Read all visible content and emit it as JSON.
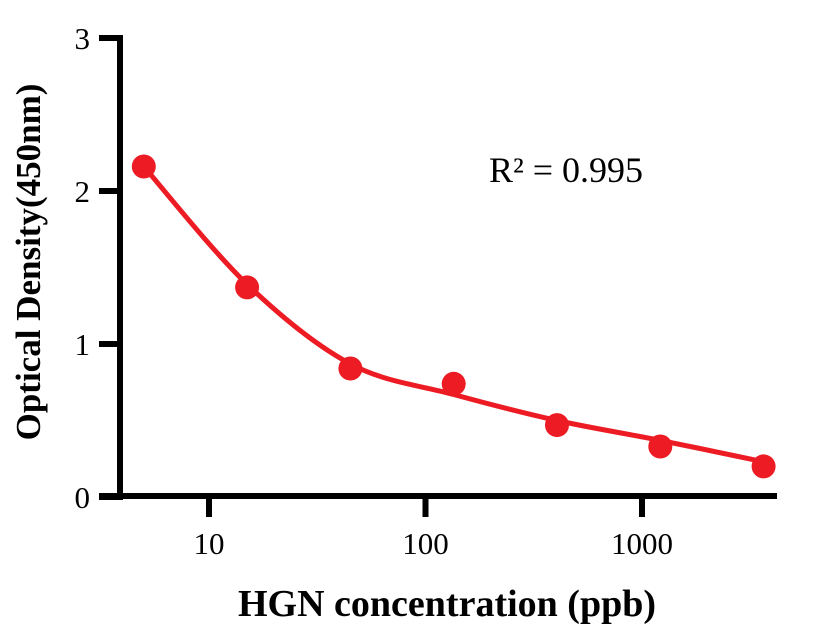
{
  "chart_data": {
    "type": "scatter",
    "title": "",
    "xlabel": "HGN concentration (ppb)",
    "ylabel": "Optical Density(450nm)",
    "annotation": "R² = 0.995",
    "x_scale": "log10",
    "x_ticks": [
      10,
      100,
      1000
    ],
    "x_tick_labels": [
      "10",
      "100",
      "1000"
    ],
    "xlim": [
      4.2,
      4600
    ],
    "y_ticks": [
      0,
      1,
      2,
      3
    ],
    "y_tick_labels": [
      "0",
      "1",
      "2",
      "3"
    ],
    "ylim": [
      0,
      3
    ],
    "grid": false,
    "legend": "none",
    "series": [
      {
        "name": "standard-points",
        "type": "scatter",
        "x": [
          5,
          15,
          45,
          135,
          405,
          1215,
          3645
        ],
        "y": [
          2.16,
          1.37,
          0.84,
          0.74,
          0.47,
          0.33,
          0.2
        ]
      },
      {
        "name": "fit-curve",
        "type": "line",
        "x": [
          5,
          15,
          45,
          135,
          405,
          1215,
          3645
        ],
        "y": [
          2.16,
          1.39,
          0.87,
          0.67,
          0.5,
          0.37,
          0.23
        ]
      }
    ],
    "colors": {
      "points": "#ED1C24",
      "curve": "#ED1C24",
      "axis": "#000000",
      "background": "#FFFFFF"
    }
  }
}
